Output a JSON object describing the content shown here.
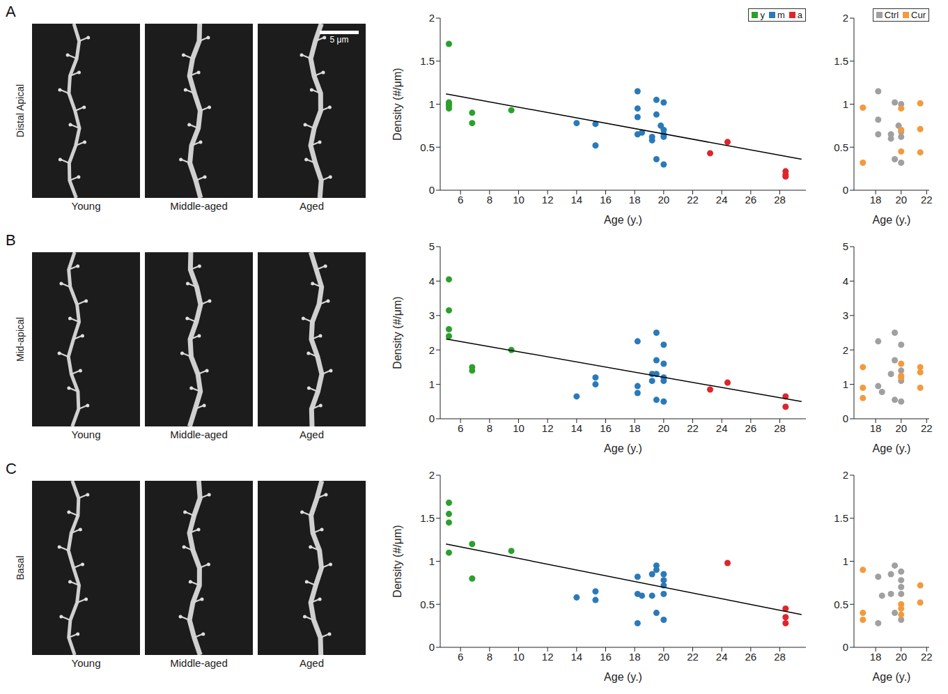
{
  "figure": {
    "rows": [
      {
        "letter": "A",
        "label": "Distal Apical",
        "image_labels": [
          "Young",
          "Middle-aged",
          "Aged"
        ],
        "scale_bar": "5 μm"
      },
      {
        "letter": "B",
        "label": "Mid-apical",
        "image_labels": [
          "Young",
          "Middle-aged",
          "Aged"
        ]
      },
      {
        "letter": "C",
        "label": "Basal",
        "image_labels": [
          "Young",
          "Middle-aged",
          "Aged"
        ]
      }
    ]
  },
  "chart_data": [
    {
      "type": "scatter",
      "x_label": "Age (y.)",
      "y_label": "Density (#/μm)",
      "xlim": [
        4.6,
        29.8
      ],
      "ylim": [
        0,
        2
      ],
      "xticks": [
        6,
        8,
        10,
        12,
        14,
        16,
        18,
        20,
        22,
        24,
        26,
        28
      ],
      "yticks": [
        0,
        0.5,
        1,
        1.5,
        2
      ],
      "legend": "top-right",
      "marker": "circle",
      "series": [
        {
          "name": "y",
          "color": "#2ca02c",
          "x": [
            5.2,
            5.2,
            5.2,
            5.2,
            5.2,
            6.8,
            6.8,
            9.5
          ],
          "values": [
            1.7,
            1.0,
            0.98,
            0.95,
            1.02,
            0.9,
            0.78,
            0.93
          ]
        },
        {
          "name": "m",
          "color": "#2a7ab9",
          "x": [
            14,
            15.3,
            15.3,
            18.2,
            18.2,
            18.2,
            18.2,
            18.5,
            19.2,
            19.2,
            19.5,
            19.5,
            19.5,
            20,
            20,
            20,
            20,
            20,
            19.8
          ],
          "values": [
            0.78,
            0.77,
            0.52,
            1.15,
            0.95,
            0.85,
            0.65,
            0.67,
            0.62,
            0.58,
            1.05,
            0.88,
            0.36,
            1.02,
            0.65,
            0.7,
            0.62,
            0.3,
            0.75
          ]
        },
        {
          "name": "a",
          "color": "#e0242b",
          "x": [
            23.2,
            24.4,
            28.4,
            28.4,
            28.4
          ],
          "values": [
            0.43,
            0.56,
            0.22,
            0.18,
            0.16
          ]
        }
      ],
      "trend_line": {
        "color": "#000000",
        "x": [
          5,
          29.5
        ],
        "values": [
          1.12,
          0.36
        ]
      }
    },
    {
      "type": "scatter",
      "x_label": "Age (y.)",
      "xlim": [
        16.3,
        22.2
      ],
      "ylim": [
        0,
        2
      ],
      "xticks": [
        18,
        20,
        22
      ],
      "yticks": [
        0,
        0.5,
        1,
        1.5,
        2
      ],
      "legend": "top-right",
      "marker": "circle",
      "series": [
        {
          "name": "Ctrl",
          "color": "#a0a0a0",
          "x": [
            18.2,
            18.2,
            18.2,
            19.2,
            19.2,
            19.5,
            19.5,
            20,
            20,
            20,
            20,
            19.8
          ],
          "values": [
            1.15,
            0.82,
            0.65,
            0.65,
            0.6,
            1.02,
            0.36,
            1.0,
            0.68,
            0.62,
            0.32,
            0.75
          ]
        },
        {
          "name": "Cur",
          "color": "#f39a3c",
          "x": [
            17,
            17,
            20,
            20,
            20,
            21.5,
            21.5,
            21.5
          ],
          "values": [
            0.96,
            0.32,
            0.95,
            0.7,
            0.45,
            1.01,
            0.71,
            0.44
          ]
        }
      ]
    },
    {
      "type": "scatter",
      "x_label": "Age (y.)",
      "y_label": "Density (#/μm)",
      "xlim": [
        4.6,
        29.8
      ],
      "ylim": [
        0,
        5
      ],
      "xticks": [
        6,
        8,
        10,
        12,
        14,
        16,
        18,
        20,
        22,
        24,
        26,
        28
      ],
      "yticks": [
        0,
        1,
        2,
        3,
        4,
        5
      ],
      "marker": "circle",
      "series": [
        {
          "name": "y",
          "color": "#2ca02c",
          "x": [
            5.2,
            5.2,
            5.2,
            5.2,
            6.8,
            6.8,
            9.5
          ],
          "values": [
            4.05,
            3.15,
            2.6,
            2.4,
            1.5,
            1.4,
            2.0
          ]
        },
        {
          "name": "m",
          "color": "#2a7ab9",
          "x": [
            14,
            15.3,
            15.3,
            18.2,
            18.2,
            18.2,
            19.2,
            19.2,
            19.5,
            19.5,
            19.5,
            19.5,
            20,
            20,
            20,
            20,
            20
          ],
          "values": [
            0.65,
            1.2,
            1.0,
            2.25,
            0.95,
            0.75,
            1.3,
            1.1,
            2.5,
            1.7,
            1.3,
            0.55,
            2.15,
            1.6,
            1.2,
            1.1,
            0.5
          ]
        },
        {
          "name": "a",
          "color": "#e0242b",
          "x": [
            23.2,
            24.4,
            28.4,
            28.4
          ],
          "values": [
            0.85,
            1.05,
            0.65,
            0.35
          ]
        }
      ],
      "trend_line": {
        "color": "#000000",
        "x": [
          5,
          29.5
        ],
        "values": [
          2.32,
          0.5
        ]
      }
    },
    {
      "type": "scatter",
      "x_label": "Age (y.)",
      "xlim": [
        16.3,
        22.2
      ],
      "ylim": [
        0,
        5
      ],
      "xticks": [
        18,
        20,
        22
      ],
      "yticks": [
        0,
        1,
        2,
        3,
        4,
        5
      ],
      "marker": "circle",
      "series": [
        {
          "name": "Ctrl",
          "color": "#a0a0a0",
          "x": [
            18.2,
            18.2,
            18.5,
            19.2,
            19.5,
            19.5,
            19.5,
            20,
            20,
            20,
            20
          ],
          "values": [
            2.25,
            0.95,
            0.78,
            1.3,
            2.5,
            1.7,
            0.55,
            2.15,
            1.4,
            1.1,
            0.5
          ]
        },
        {
          "name": "Cur",
          "color": "#f39a3c",
          "x": [
            17,
            17,
            17,
            20,
            20,
            20,
            21.5,
            21.5,
            21.5
          ],
          "values": [
            1.5,
            0.9,
            0.6,
            1.6,
            1.2,
            1.25,
            1.5,
            1.35,
            0.9
          ]
        }
      ]
    },
    {
      "type": "scatter",
      "x_label": "Age (y.)",
      "y_label": "Density (#/μm)",
      "xlim": [
        4.6,
        29.8
      ],
      "ylim": [
        0,
        2
      ],
      "xticks": [
        6,
        8,
        10,
        12,
        14,
        16,
        18,
        20,
        22,
        24,
        26,
        28
      ],
      "yticks": [
        0,
        0.5,
        1,
        1.5,
        2
      ],
      "marker": "circle",
      "series": [
        {
          "name": "y",
          "color": "#2ca02c",
          "x": [
            5.2,
            5.2,
            5.2,
            5.2,
            6.8,
            6.8,
            9.5
          ],
          "values": [
            1.68,
            1.55,
            1.45,
            1.1,
            1.2,
            0.8,
            1.12
          ]
        },
        {
          "name": "m",
          "color": "#2a7ab9",
          "x": [
            14,
            15.3,
            15.3,
            18.2,
            18.2,
            18.2,
            18.5,
            19.2,
            19.2,
            19.5,
            19.5,
            19.5,
            20,
            20,
            20,
            20,
            20
          ],
          "values": [
            0.58,
            0.65,
            0.55,
            0.82,
            0.62,
            0.28,
            0.6,
            0.85,
            0.6,
            0.95,
            0.9,
            0.4,
            0.85,
            0.78,
            0.72,
            0.62,
            0.32
          ]
        },
        {
          "name": "a",
          "color": "#e0242b",
          "x": [
            24.4,
            28.4,
            28.4,
            28.4
          ],
          "values": [
            0.98,
            0.45,
            0.35,
            0.28
          ]
        }
      ],
      "trend_line": {
        "color": "#000000",
        "x": [
          5,
          29.5
        ],
        "values": [
          1.2,
          0.38
        ]
      }
    },
    {
      "type": "scatter",
      "x_label": "Age (y.)",
      "xlim": [
        16.3,
        22.2
      ],
      "ylim": [
        0,
        2
      ],
      "xticks": [
        18,
        20,
        22
      ],
      "yticks": [
        0,
        0.5,
        1,
        1.5,
        2
      ],
      "marker": "circle",
      "series": [
        {
          "name": "Ctrl",
          "color": "#a0a0a0",
          "x": [
            18.2,
            18.2,
            18.5,
            19.2,
            19.2,
            19.5,
            19.5,
            20,
            20,
            20,
            20,
            20
          ],
          "values": [
            0.82,
            0.28,
            0.6,
            0.85,
            0.62,
            0.95,
            0.4,
            0.88,
            0.78,
            0.7,
            0.62,
            0.32
          ]
        },
        {
          "name": "Cur",
          "color": "#f39a3c",
          "x": [
            17,
            17,
            17,
            20,
            20,
            20,
            21.5,
            21.5
          ],
          "values": [
            0.9,
            0.4,
            0.32,
            0.5,
            0.45,
            0.38,
            0.72,
            0.52
          ]
        }
      ]
    }
  ]
}
